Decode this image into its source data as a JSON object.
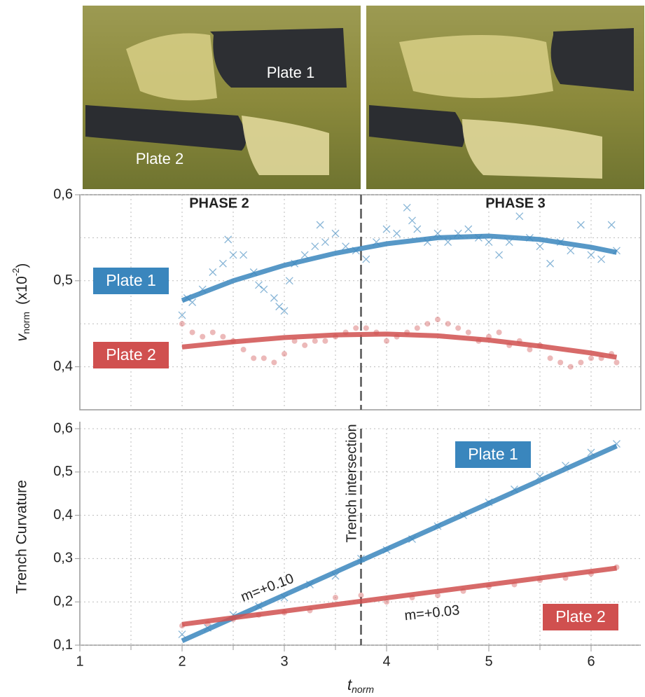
{
  "images": [
    {
      "labels": [
        "Plate 1",
        "Plate 2"
      ]
    },
    {
      "labels": []
    }
  ],
  "chart_data": [
    {
      "type": "scatter",
      "ylabel": {
        "symbol": "v",
        "subscript": "norm",
        "unit": "(x10",
        "superscript": "-2",
        "close": ")"
      },
      "annotations": [
        "PHASE 2",
        "PHASE 3"
      ],
      "xlim": [
        1,
        6.5
      ],
      "ylim": [
        0.35,
        0.6
      ],
      "yticks": [
        {
          "value": 0.4,
          "label": "0,4"
        },
        {
          "value": 0.5,
          "label": "0,5"
        },
        {
          "value": 0.6,
          "label": "0,6"
        }
      ],
      "minor_yticks": [
        0.45,
        0.55
      ],
      "xgrid": [
        1.5,
        2,
        2.5,
        3,
        3.5,
        4,
        4.5,
        5,
        5.5,
        6
      ],
      "vline": 3.75,
      "series": [
        {
          "name": "Plate 1",
          "color": "#3a86bd",
          "marker": "x",
          "x": [
            2.0,
            2.05,
            2.1,
            2.2,
            2.3,
            2.4,
            2.45,
            2.5,
            2.6,
            2.7,
            2.75,
            2.8,
            2.9,
            2.95,
            3.0,
            3.05,
            3.1,
            3.2,
            3.3,
            3.35,
            3.4,
            3.5,
            3.6,
            3.7,
            3.8,
            3.9,
            4.0,
            4.1,
            4.2,
            4.25,
            4.3,
            4.4,
            4.5,
            4.6,
            4.7,
            4.8,
            4.9,
            5.0,
            5.1,
            5.2,
            5.3,
            5.4,
            5.5,
            5.6,
            5.7,
            5.8,
            5.9,
            6.0,
            6.1,
            6.2,
            6.25
          ],
          "values": [
            0.46,
            0.48,
            0.475,
            0.49,
            0.51,
            0.52,
            0.548,
            0.53,
            0.53,
            0.51,
            0.495,
            0.49,
            0.48,
            0.47,
            0.465,
            0.5,
            0.52,
            0.53,
            0.54,
            0.565,
            0.545,
            0.555,
            0.54,
            0.535,
            0.525,
            0.545,
            0.56,
            0.555,
            0.585,
            0.57,
            0.56,
            0.545,
            0.555,
            0.545,
            0.555,
            0.56,
            0.55,
            0.545,
            0.53,
            0.545,
            0.575,
            0.55,
            0.54,
            0.52,
            0.545,
            0.535,
            0.565,
            0.53,
            0.525,
            0.565,
            0.535
          ],
          "fit": {
            "x": [
              2,
              2.5,
              3,
              3.5,
              4,
              4.5,
              5,
              5.5,
              6,
              6.25
            ],
            "values": [
              0.477,
              0.5,
              0.518,
              0.532,
              0.543,
              0.55,
              0.552,
              0.548,
              0.539,
              0.533
            ]
          }
        },
        {
          "name": "Plate 2",
          "color": "#d0504f",
          "marker": "circle",
          "x": [
            2.0,
            2.1,
            2.2,
            2.3,
            2.4,
            2.5,
            2.6,
            2.7,
            2.8,
            2.9,
            3.0,
            3.1,
            3.2,
            3.3,
            3.4,
            3.5,
            3.6,
            3.7,
            3.8,
            3.9,
            4.0,
            4.1,
            4.2,
            4.3,
            4.4,
            4.5,
            4.6,
            4.7,
            4.8,
            4.9,
            5.0,
            5.1,
            5.2,
            5.3,
            5.4,
            5.5,
            5.6,
            5.7,
            5.8,
            5.9,
            6.0,
            6.1,
            6.2,
            6.25
          ],
          "values": [
            0.45,
            0.44,
            0.435,
            0.44,
            0.435,
            0.43,
            0.42,
            0.41,
            0.41,
            0.405,
            0.415,
            0.43,
            0.425,
            0.43,
            0.43,
            0.435,
            0.44,
            0.445,
            0.445,
            0.44,
            0.43,
            0.435,
            0.44,
            0.445,
            0.45,
            0.455,
            0.45,
            0.445,
            0.44,
            0.43,
            0.435,
            0.44,
            0.425,
            0.43,
            0.42,
            0.425,
            0.41,
            0.405,
            0.4,
            0.405,
            0.41,
            0.41,
            0.415,
            0.405
          ],
          "fit": {
            "x": [
              2,
              2.5,
              3,
              3.5,
              4,
              4.5,
              5,
              5.5,
              6,
              6.25
            ],
            "values": [
              0.423,
              0.429,
              0.434,
              0.437,
              0.438,
              0.436,
              0.431,
              0.424,
              0.416,
              0.411
            ]
          }
        }
      ]
    },
    {
      "type": "scatter",
      "ylabel": "Trench Curvature",
      "xlabel": {
        "symbol": "t",
        "subscript": "norm"
      },
      "annotations": [
        "Trench  intersection",
        "m=+0.10",
        "m=+0.03"
      ],
      "xlim": [
        1,
        6.5
      ],
      "ylim": [
        0.1,
        0.6
      ],
      "xticks": [
        1,
        2,
        3,
        4,
        5,
        6
      ],
      "xgrid": [
        1.5,
        2,
        2.5,
        3,
        3.5,
        4,
        4.5,
        5,
        5.5,
        6
      ],
      "yticks": [
        {
          "value": 0.1,
          "label": "0,1"
        },
        {
          "value": 0.2,
          "label": "0,2"
        },
        {
          "value": 0.3,
          "label": "0,3"
        },
        {
          "value": 0.4,
          "label": "0,4"
        },
        {
          "value": 0.5,
          "label": "0,5"
        },
        {
          "value": 0.6,
          "label": "0,6"
        }
      ],
      "vline": 3.75,
      "series": [
        {
          "name": "Plate 1",
          "color": "#3a86bd",
          "marker": "x",
          "x": [
            2.0,
            2.25,
            2.5,
            2.75,
            3.0,
            3.25,
            3.5,
            3.75,
            4.0,
            4.25,
            4.5,
            4.75,
            5.0,
            5.25,
            5.5,
            5.75,
            6.0,
            6.25
          ],
          "values": [
            0.125,
            0.14,
            0.17,
            0.19,
            0.21,
            0.24,
            0.26,
            0.3,
            0.32,
            0.345,
            0.375,
            0.4,
            0.43,
            0.46,
            0.49,
            0.515,
            0.545,
            0.565
          ],
          "fit": {
            "x": [
              2,
              6.25
            ],
            "values": [
              0.11,
              0.56
            ]
          }
        },
        {
          "name": "Plate 2",
          "color": "#d0504f",
          "marker": "circle",
          "x": [
            2.0,
            2.25,
            2.5,
            2.75,
            3.0,
            3.25,
            3.5,
            3.75,
            4.0,
            4.25,
            4.5,
            4.75,
            5.0,
            5.25,
            5.5,
            5.75,
            6.0,
            6.25
          ],
          "values": [
            0.145,
            0.15,
            0.16,
            0.17,
            0.175,
            0.18,
            0.21,
            0.215,
            0.2,
            0.21,
            0.215,
            0.225,
            0.235,
            0.24,
            0.25,
            0.255,
            0.265,
            0.28
          ],
          "fit": {
            "x": [
              2,
              6.25
            ],
            "values": [
              0.148,
              0.278
            ]
          }
        }
      ]
    }
  ]
}
